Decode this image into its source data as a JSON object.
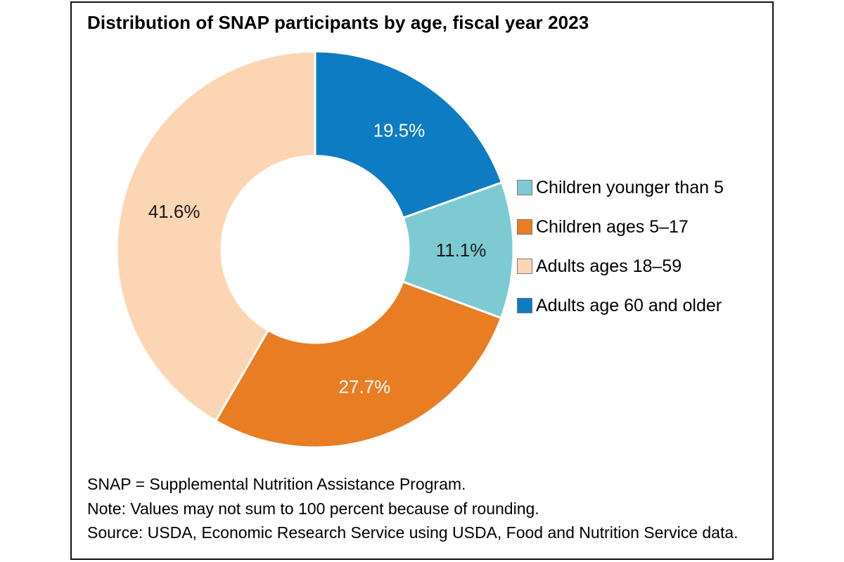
{
  "title": "Distribution of SNAP participants by age, fiscal year 2023",
  "chart_data": {
    "type": "pie",
    "subtype": "donut",
    "title": "Distribution of SNAP participants by age, fiscal year 2023",
    "start_angle_deg": 0,
    "direction": "clockwise",
    "inner_radius_ratio": 0.47,
    "slice_separator_color": "#ffffff",
    "slices": [
      {
        "label": "Adults age 60 and older",
        "value": 19.5,
        "display": "19.5%",
        "color": "#0e7cc2",
        "label_color": "#ffffff"
      },
      {
        "label": "Children younger than 5",
        "value": 11.1,
        "display": "11.1%",
        "color": "#7ecad3",
        "label_color": "#1a1a1a"
      },
      {
        "label": "Children ages 5–17",
        "value": 27.7,
        "display": "27.7%",
        "color": "#e87d24",
        "label_color": "#ffffff"
      },
      {
        "label": "Adults ages 18–59",
        "value": 41.6,
        "display": "41.6%",
        "color": "#fcd6b4",
        "label_color": "#1a1a1a"
      }
    ],
    "legend": {
      "position": "right",
      "items": [
        {
          "label": "Children younger than 5",
          "color": "#7ecad3"
        },
        {
          "label": "Children ages 5–17",
          "color": "#e87d24"
        },
        {
          "label": "Adults ages 18–59",
          "color": "#fcd6b4"
        },
        {
          "label": "Adults age 60 and older",
          "color": "#0e7cc2"
        }
      ]
    }
  },
  "footer": {
    "line1": "SNAP = Supplemental Nutrition Assistance Program.",
    "line2": "Note: Values may not sum to 100 percent because of rounding.",
    "line3": "Source: USDA, Economic Research Service using USDA, Food and Nutrition Service data."
  }
}
